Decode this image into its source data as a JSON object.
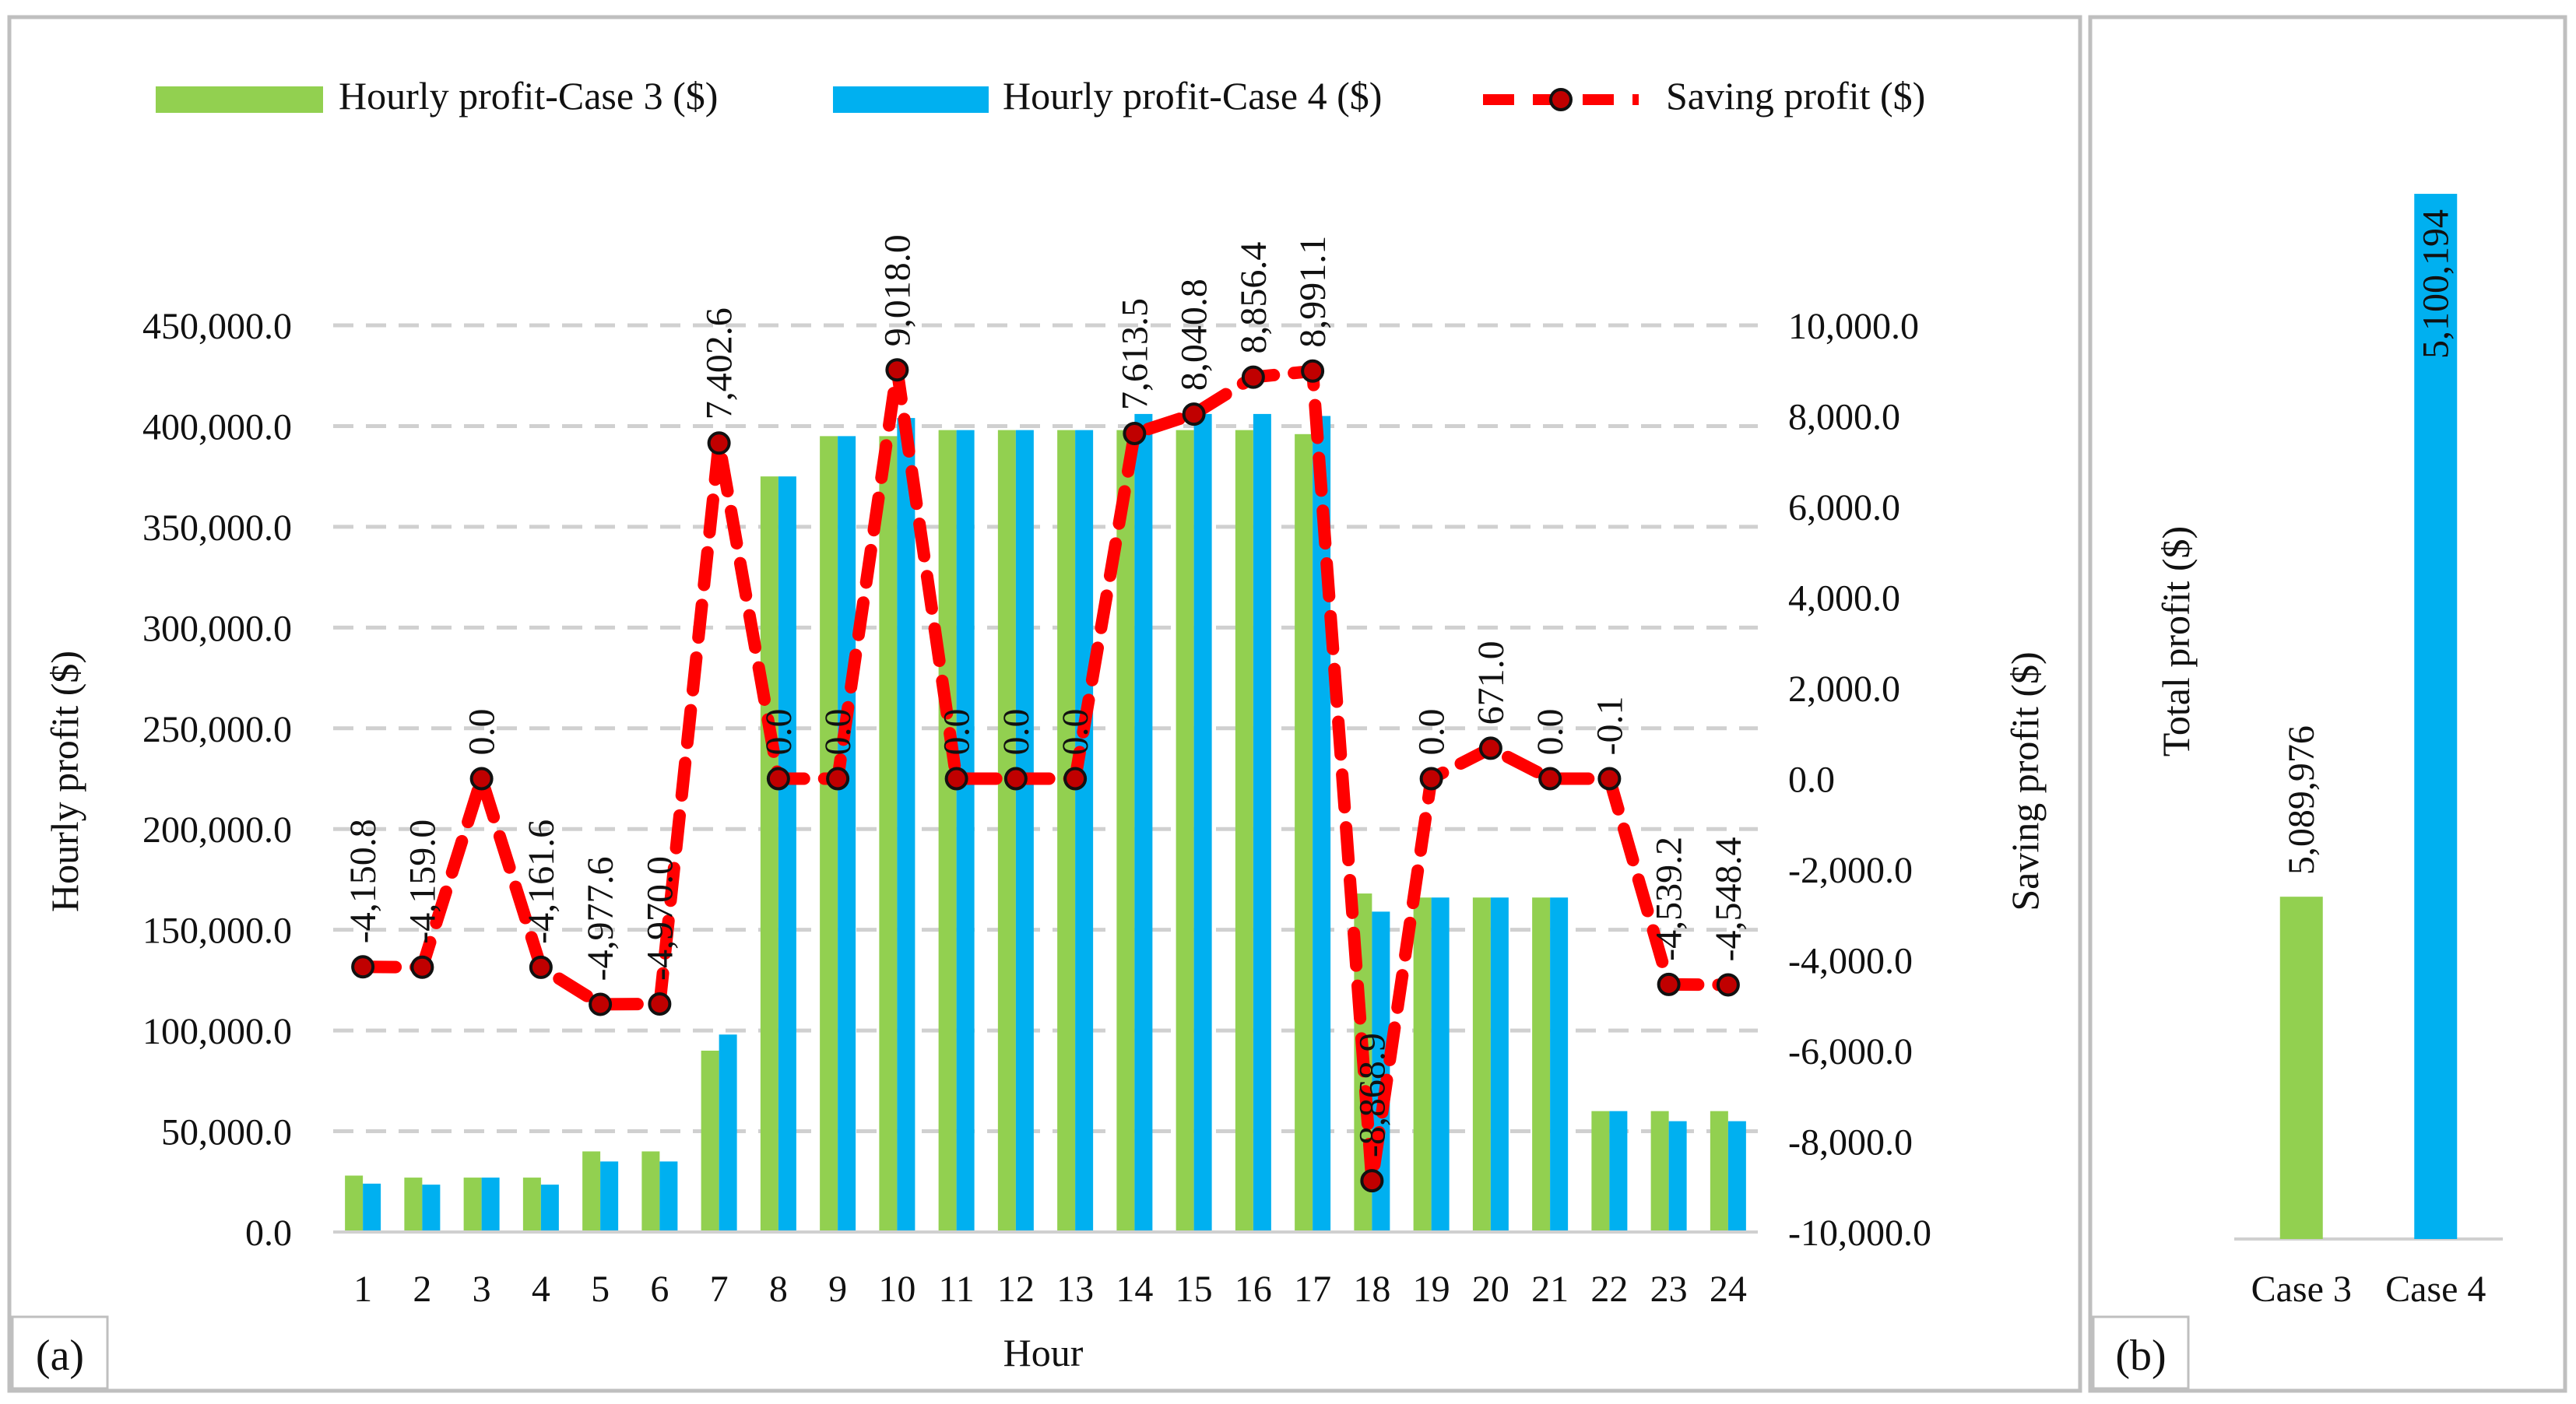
{
  "colors": {
    "case3": "#92d050",
    "case4": "#00b0f0",
    "saving": "#ff0000",
    "grid": "#d0d0d0",
    "marker_fill": "#c00000"
  },
  "chart_data": [
    {
      "panel": "(a)",
      "type": "bar",
      "categories": [
        "1",
        "2",
        "3",
        "4",
        "5",
        "6",
        "7",
        "8",
        "9",
        "10",
        "11",
        "12",
        "13",
        "14",
        "15",
        "16",
        "17",
        "18",
        "19",
        "20",
        "21",
        "22",
        "23",
        "24"
      ],
      "xlabel": "Hour",
      "ylabel": "Hourly profit ($)",
      "ylabel_right": "Saving profit ($)",
      "ylim": [
        0,
        450000
      ],
      "ylim_right": [
        -10000,
        10000
      ],
      "yticks": [
        "0.0",
        "50,000.0",
        "100,000.0",
        "150,000.0",
        "200,000.0",
        "250,000.0",
        "300,000.0",
        "350,000.0",
        "400,000.0",
        "450,000.0"
      ],
      "yticks_right": [
        "-10,000.0",
        "-8,000.0",
        "-6,000.0",
        "-4,000.0",
        "-2,000.0",
        "0.0",
        "2,000.0",
        "4,000.0",
        "6,000.0",
        "8,000.0",
        "10,000.0"
      ],
      "grid": true,
      "legend_position": "top",
      "series": [
        {
          "name": "Hourly profit-Case 3 ($)",
          "type": "bar",
          "axis": "left",
          "values": [
            28000,
            27000,
            27000,
            27000,
            40000,
            40000,
            90000,
            375000,
            395000,
            395000,
            398000,
            398000,
            398000,
            398000,
            398000,
            398000,
            396000,
            168000,
            166000,
            166000,
            166000,
            60000,
            60000,
            60000
          ]
        },
        {
          "name": "Hourly profit-Case 4 ($)",
          "type": "bar",
          "axis": "left",
          "values": [
            24000,
            23500,
            27000,
            23500,
            35000,
            35000,
            98000,
            375000,
            395000,
            404000,
            398000,
            398000,
            398000,
            406000,
            406000,
            406000,
            405000,
            159000,
            166000,
            166000,
            166000,
            60000,
            55000,
            55000
          ]
        },
        {
          "name": "Saving profit ($)",
          "type": "line",
          "axis": "right",
          "values": [
            -4150.8,
            -4159.0,
            0.0,
            -4161.6,
            -4977.6,
            -4970.0,
            7402.6,
            0.0,
            0.0,
            9018.0,
            0.0,
            0.0,
            0.0,
            7613.5,
            8040.8,
            8856.4,
            8991.1,
            -8868.9,
            0.0,
            671.0,
            0.0,
            -0.1,
            -4539.2,
            -4548.4
          ],
          "labels": [
            "-4,150.8",
            "-4,159.0",
            "0.0",
            "-4,161.6",
            "-4,977.6",
            "-4,970.0",
            "7,402.6",
            "0.0",
            "0.0",
            "9,018.0",
            "0.0",
            "0.0",
            "0.0",
            "7,613.5",
            "8,040.8",
            "8,856.4",
            "8,991.1",
            "-8,868.9",
            "0.0",
            "671.0",
            "0.0",
            "-0.1",
            "-4,539.2",
            "-4,548.4"
          ]
        }
      ]
    },
    {
      "panel": "(b)",
      "type": "bar",
      "categories": [
        "Case 3",
        "Case 4"
      ],
      "values": [
        5089976,
        5100194
      ],
      "labels": [
        "5,089,976",
        "5,100,194"
      ],
      "ylabel": "Total profit ($)",
      "ylim": [
        5085000,
        5100500
      ],
      "grid": false
    }
  ]
}
